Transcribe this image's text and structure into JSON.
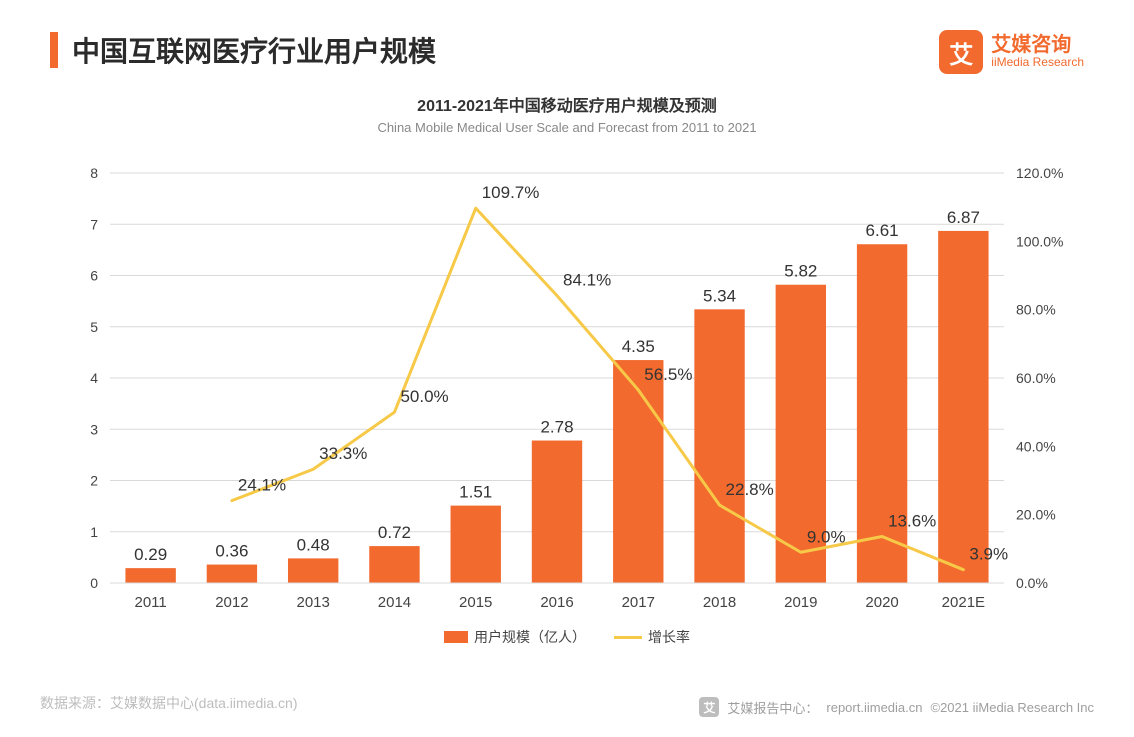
{
  "header": {
    "main_title": "中国互联网医疗行业用户规模",
    "logo_cn": "艾媒咨询",
    "logo_en": "iiMedia Research",
    "logo_glyph": "艾"
  },
  "chart": {
    "title_cn": "2011-2021年中国移动医疗用户规模及预测",
    "title_en": "China Mobile Medical User Scale and Forecast from 2011 to 2021",
    "type": "bar+line",
    "categories": [
      "2011",
      "2012",
      "2013",
      "2014",
      "2015",
      "2016",
      "2017",
      "2018",
      "2019",
      "2020",
      "2021E"
    ],
    "bar_values": [
      0.29,
      0.36,
      0.48,
      0.72,
      1.51,
      2.78,
      4.35,
      5.34,
      5.82,
      6.61,
      6.87
    ],
    "bar_labels": [
      "0.29",
      "0.36",
      "0.48",
      "0.72",
      "1.51",
      "2.78",
      "4.35",
      "5.34",
      "5.82",
      "6.61",
      "6.87"
    ],
    "line_values": [
      null,
      24.1,
      33.3,
      50.0,
      109.7,
      84.1,
      56.5,
      22.8,
      9.0,
      13.6,
      3.9
    ],
    "line_labels": [
      null,
      "24.1%",
      "33.3%",
      "50.0%",
      "109.7%",
      "84.1%",
      "56.5%",
      "22.8%",
      "9.0%",
      "13.6%",
      "3.9%"
    ],
    "y_left": {
      "min": 0,
      "max": 8,
      "step": 1
    },
    "y_right": {
      "min": 0,
      "max": 120,
      "step": 20,
      "suffix": "%",
      "decimals": 1
    },
    "colors": {
      "bar": "#f26a2e",
      "line": "#f7c948",
      "grid": "#d9d9d9",
      "axis_text": "#444444",
      "background": "#ffffff"
    },
    "bar_width_ratio": 0.62,
    "line_width": 3,
    "legend": {
      "bar_label": "用户规模（亿人）",
      "line_label": "增长率"
    }
  },
  "footer": {
    "source_prefix": "数据来源：",
    "source_text": "艾媒数据中心(data.iimedia.cn)",
    "report_prefix": "艾媒报告中心：",
    "report_url": "report.iimedia.cn",
    "copyright": "©2021  iiMedia Research  Inc"
  }
}
